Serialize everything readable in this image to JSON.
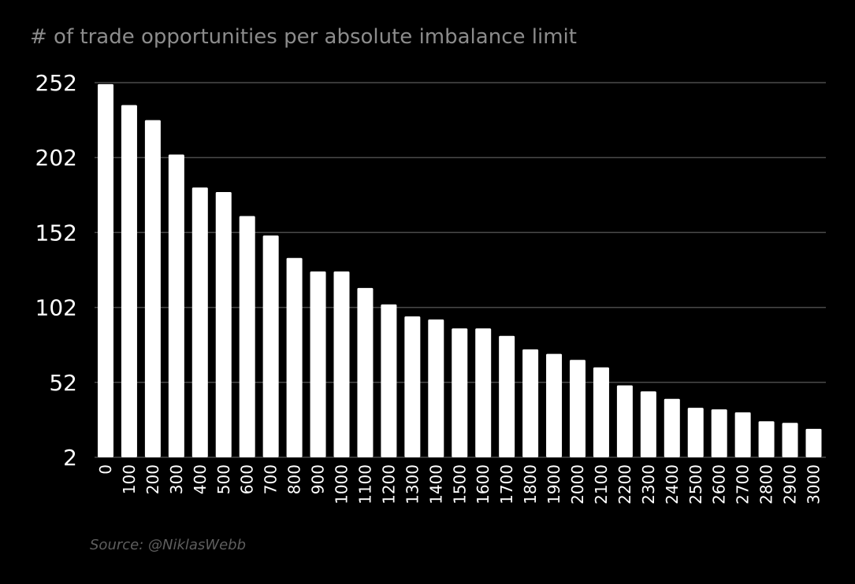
{
  "chart_data": {
    "type": "bar",
    "title": "# of trade opportunities per absolute imbalance limit",
    "xlabel": "",
    "ylabel": "",
    "categories": [
      "0",
      "100",
      "200",
      "300",
      "400",
      "500",
      "600",
      "700",
      "800",
      "900",
      "1000",
      "1100",
      "1200",
      "1300",
      "1400",
      "1500",
      "1600",
      "1700",
      "1800",
      "1900",
      "2000",
      "2100",
      "2200",
      "2300",
      "2400",
      "2500",
      "2600",
      "2700",
      "2800",
      "2900",
      "3000"
    ],
    "values": [
      251,
      237,
      227,
      204,
      182,
      179,
      163,
      150,
      135,
      126,
      126,
      115,
      104,
      96,
      94,
      88,
      88,
      83,
      74,
      71,
      67,
      62,
      50,
      46,
      41,
      35,
      34,
      32,
      26,
      25,
      21
    ],
    "yticks": [
      2,
      52,
      102,
      152,
      202,
      252
    ],
    "ylim": [
      2,
      252
    ],
    "grid": true,
    "bar_color": "#ffffff",
    "grid_color": "#4a4a4a",
    "background": "#000000"
  },
  "source": "Source: @NiklasWebb"
}
